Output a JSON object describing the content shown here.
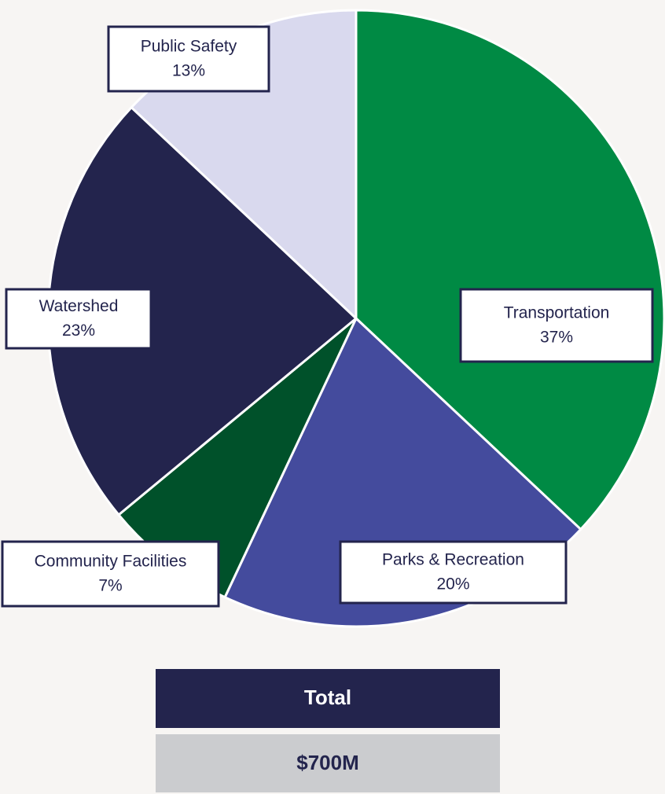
{
  "chart_data": {
    "type": "pie",
    "categories": [
      "Transportation",
      "Parks & Recreation",
      "Community Facilities",
      "Watershed",
      "Public Safety"
    ],
    "values": [
      37,
      20,
      7,
      23,
      13
    ],
    "value_labels": [
      "37%",
      "20%",
      "7%",
      "23%",
      "13%"
    ],
    "colors": [
      "#008a44",
      "#444b9d",
      "#00512a",
      "#23244d",
      "#d9d9ee"
    ],
    "total": {
      "label": "Total",
      "value": "$700M"
    }
  }
}
